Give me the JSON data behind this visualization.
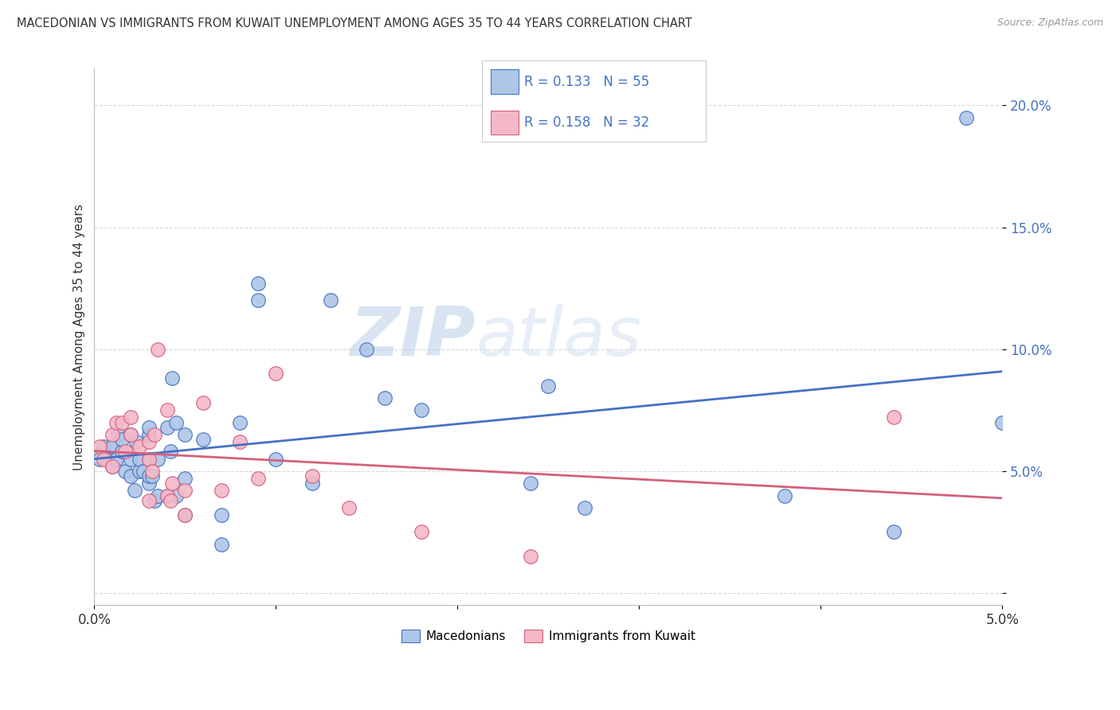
{
  "title": "MACEDONIAN VS IMMIGRANTS FROM KUWAIT UNEMPLOYMENT AMONG AGES 35 TO 44 YEARS CORRELATION CHART",
  "source": "Source: ZipAtlas.com",
  "ylabel": "Unemployment Among Ages 35 to 44 years",
  "xlim": [
    0.0,
    0.05
  ],
  "ylim": [
    -0.005,
    0.215
  ],
  "ytick_vals": [
    0.0,
    0.05,
    0.1,
    0.15,
    0.2
  ],
  "ytick_labels": [
    "",
    "5.0%",
    "10.0%",
    "15.0%",
    "20.0%"
  ],
  "xtick_vals": [
    0.0,
    0.01,
    0.02,
    0.03,
    0.04,
    0.05
  ],
  "xtick_labels": [
    "0.0%",
    "",
    "",
    "",
    "",
    "5.0%"
  ],
  "macedonians_x": [
    0.0003,
    0.0005,
    0.0007,
    0.001,
    0.001,
    0.0012,
    0.0013,
    0.0015,
    0.0015,
    0.0017,
    0.002,
    0.002,
    0.002,
    0.0022,
    0.0023,
    0.0025,
    0.0025,
    0.0027,
    0.003,
    0.003,
    0.003,
    0.003,
    0.003,
    0.0032,
    0.0033,
    0.0035,
    0.0035,
    0.004,
    0.004,
    0.0042,
    0.0043,
    0.0045,
    0.0045,
    0.005,
    0.005,
    0.005,
    0.006,
    0.007,
    0.007,
    0.008,
    0.009,
    0.009,
    0.01,
    0.012,
    0.013,
    0.015,
    0.016,
    0.018,
    0.024,
    0.025,
    0.027,
    0.038,
    0.044,
    0.048,
    0.05
  ],
  "macedonians_y": [
    0.055,
    0.06,
    0.055,
    0.052,
    0.06,
    0.055,
    0.065,
    0.058,
    0.063,
    0.05,
    0.048,
    0.055,
    0.065,
    0.042,
    0.062,
    0.05,
    0.055,
    0.05,
    0.045,
    0.048,
    0.055,
    0.065,
    0.068,
    0.048,
    0.038,
    0.055,
    0.04,
    0.04,
    0.068,
    0.058,
    0.088,
    0.04,
    0.07,
    0.065,
    0.047,
    0.032,
    0.063,
    0.032,
    0.02,
    0.07,
    0.12,
    0.127,
    0.055,
    0.045,
    0.12,
    0.1,
    0.08,
    0.075,
    0.045,
    0.085,
    0.035,
    0.04,
    0.025,
    0.195,
    0.07
  ],
  "kuwait_x": [
    0.0003,
    0.0005,
    0.001,
    0.001,
    0.0012,
    0.0015,
    0.0017,
    0.002,
    0.002,
    0.0025,
    0.003,
    0.003,
    0.003,
    0.0032,
    0.0033,
    0.0035,
    0.004,
    0.004,
    0.0042,
    0.0043,
    0.005,
    0.005,
    0.006,
    0.007,
    0.008,
    0.009,
    0.01,
    0.012,
    0.014,
    0.018,
    0.024,
    0.044
  ],
  "kuwait_y": [
    0.06,
    0.055,
    0.052,
    0.065,
    0.07,
    0.07,
    0.058,
    0.072,
    0.065,
    0.06,
    0.055,
    0.062,
    0.038,
    0.05,
    0.065,
    0.1,
    0.04,
    0.075,
    0.038,
    0.045,
    0.032,
    0.042,
    0.078,
    0.042,
    0.062,
    0.047,
    0.09,
    0.048,
    0.035,
    0.025,
    0.015,
    0.072
  ],
  "mac_R": 0.133,
  "mac_N": 55,
  "kuw_R": 0.158,
  "kuw_N": 32,
  "mac_color": "#aec6e8",
  "kuw_color": "#f4b8c8",
  "mac_line_color": "#4472c4",
  "kuw_line_color": "#d4607a",
  "watermark_zip": "ZIP",
  "watermark_atlas": "atlas",
  "background_color": "#ffffff",
  "grid_color": "#d8d8d8",
  "legend_bottom_labels": [
    "Macedonians",
    "Immigrants from Kuwait"
  ]
}
